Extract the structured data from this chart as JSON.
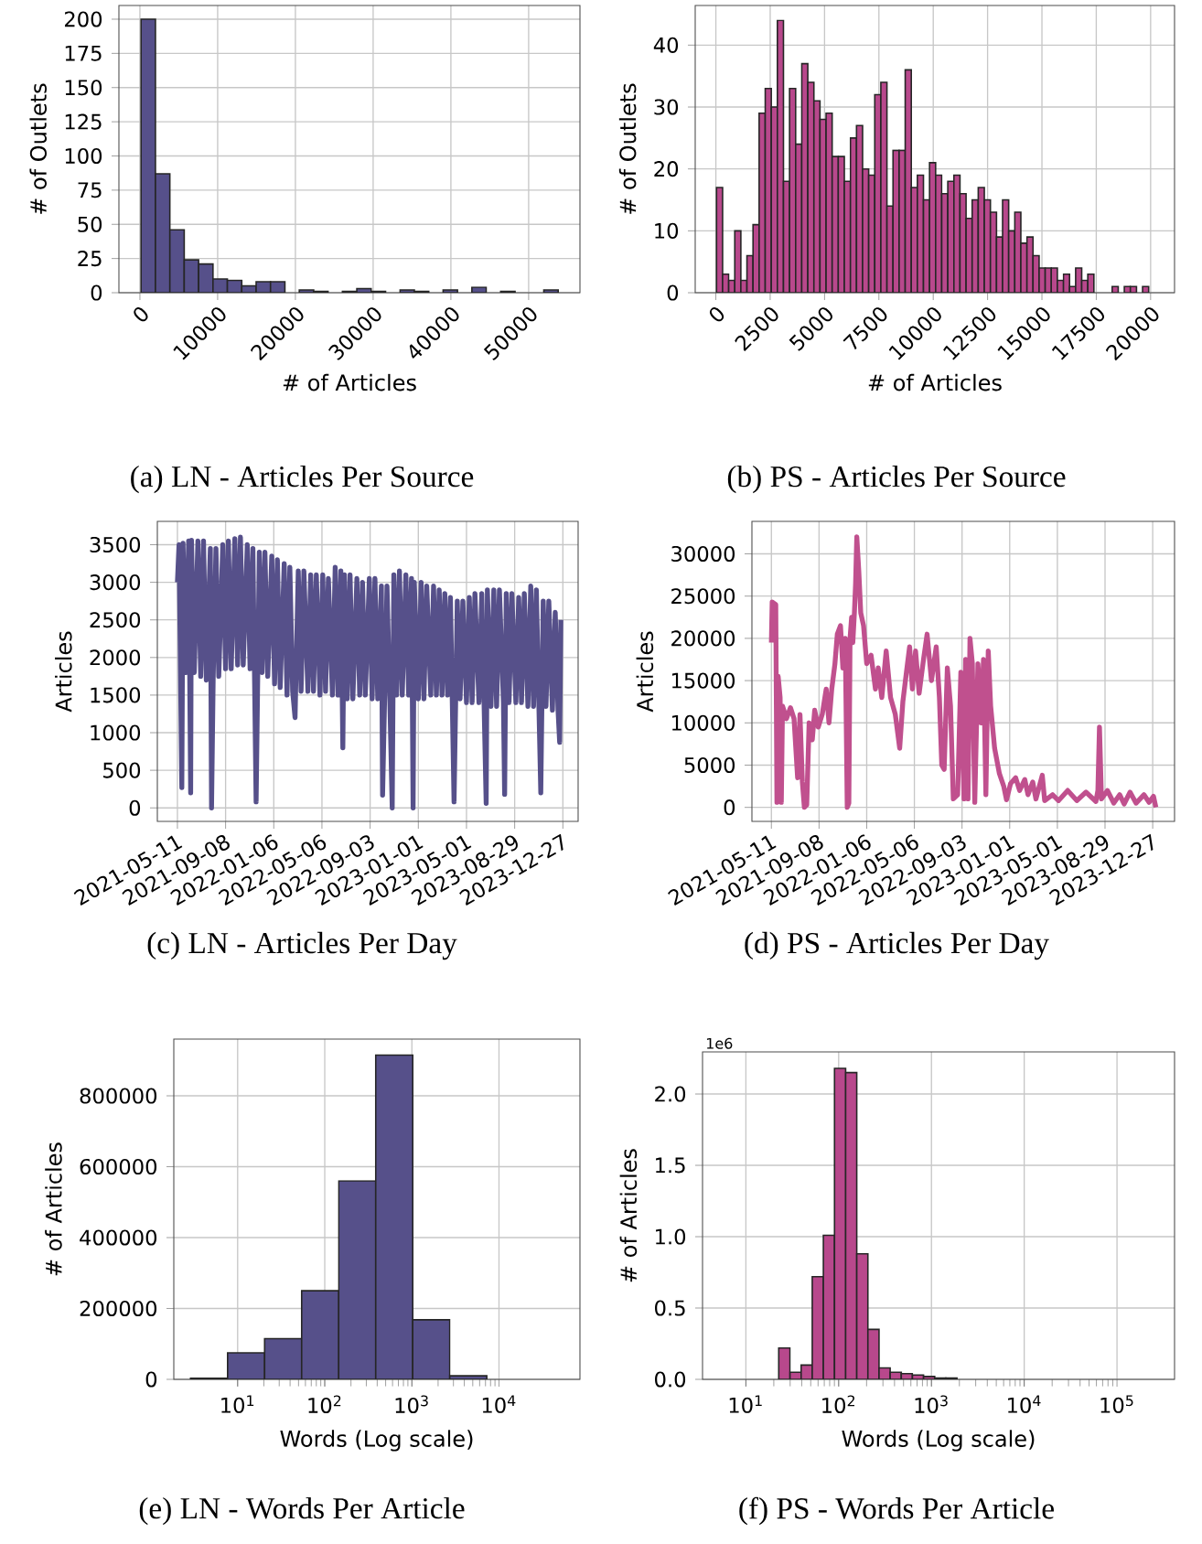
{
  "chart_data": [
    {
      "type": "histogram",
      "title": "(a) LN - Articles Per Source",
      "xlabel": "# of Articles",
      "ylabel": "# of Outlets",
      "color": "#56508a",
      "grid": true,
      "bins": [
        150,
        2000,
        3850,
        5700,
        7550,
        9400,
        11250,
        13100,
        14950,
        16800,
        18650,
        20500,
        22350,
        24200,
        26050,
        27900,
        29750,
        31600,
        33450,
        35300,
        37150,
        39000,
        40850,
        42700,
        44550,
        46400,
        48250,
        50100,
        51950,
        53800
      ],
      "values": [
        200,
        87,
        46,
        24,
        21,
        10,
        9,
        5,
        8,
        8,
        0,
        2,
        1,
        0,
        1,
        3,
        1,
        0,
        2,
        1,
        0,
        2,
        0,
        4,
        0,
        1,
        0,
        0,
        2
      ],
      "xlim": [
        -2700,
        56600
      ],
      "ylim": [
        0,
        210
      ],
      "xticks": [
        0,
        10000,
        20000,
        30000,
        40000,
        50000
      ],
      "yticks": [
        0,
        25,
        50,
        75,
        100,
        125,
        150,
        175,
        200
      ]
    },
    {
      "type": "histogram",
      "title": "(b) PS - Articles Per Source",
      "xlabel": "# of Articles",
      "ylabel": "# of Outlets",
      "color": "#b8488c",
      "grid": true,
      "bins": [
        30,
        310,
        590,
        870,
        1150,
        1430,
        1710,
        1990,
        2270,
        2550,
        2830,
        3110,
        3390,
        3670,
        3950,
        4230,
        4510,
        4790,
        5070,
        5350,
        5630,
        5910,
        6190,
        6470,
        6750,
        7030,
        7310,
        7590,
        7870,
        8150,
        8430,
        8710,
        8990,
        9270,
        9550,
        9830,
        10110,
        10390,
        10670,
        10950,
        11230,
        11510,
        11790,
        12070,
        12350,
        12630,
        12910,
        13190,
        13470,
        13750,
        14030,
        14310,
        14590,
        14870,
        15150,
        15430,
        15710,
        15990,
        16270,
        16550,
        16830,
        17110,
        17390,
        17670,
        17950,
        18230,
        18510,
        18790,
        19070,
        19350,
        19630,
        19910
      ],
      "values": [
        17,
        3,
        2,
        10,
        2,
        6,
        11,
        29,
        33,
        30,
        44,
        18,
        33,
        24,
        37,
        34,
        31,
        28,
        29,
        22,
        22,
        18,
        25,
        27,
        20,
        19,
        32,
        34,
        14,
        23,
        23,
        36,
        17,
        19,
        15,
        21,
        19,
        16,
        18,
        19,
        16,
        12,
        15,
        17,
        15,
        13,
        9,
        15,
        10,
        13,
        8,
        9,
        6,
        4,
        4,
        4,
        2,
        3,
        1,
        4,
        2,
        3,
        0,
        0,
        0,
        1,
        0,
        1,
        1,
        0,
        1
      ],
      "xlim": [
        -950,
        21100
      ],
      "ylim": [
        0,
        46.4
      ],
      "xticks": [
        0,
        2500,
        5000,
        7500,
        10000,
        12500,
        15000,
        17500,
        20000
      ],
      "yticks": [
        0,
        10,
        20,
        30,
        40
      ]
    },
    {
      "type": "line",
      "title": "(c) LN - Articles Per Day",
      "ylabel": "Articles",
      "color": "#56508a",
      "grid": true,
      "x": [
        "2021-05-11",
        "2021-05-15",
        "2021-05-22",
        "2021-05-25",
        "2021-06-01",
        "2021-06-08",
        "2021-06-13",
        "2021-06-15",
        "2021-06-22",
        "2021-07-01",
        "2021-07-08",
        "2021-07-15",
        "2021-07-22",
        "2021-08-01",
        "2021-08-04",
        "2021-08-08",
        "2021-08-15",
        "2021-08-22",
        "2021-09-01",
        "2021-09-08",
        "2021-09-15",
        "2021-09-22",
        "2021-10-01",
        "2021-10-08",
        "2021-10-15",
        "2021-10-22",
        "2021-11-01",
        "2021-11-08",
        "2021-11-15",
        "2021-11-23",
        "2021-12-01",
        "2021-12-08",
        "2021-12-15",
        "2021-12-22",
        "2022-01-01",
        "2022-01-08",
        "2022-01-15",
        "2022-01-22",
        "2022-02-01",
        "2022-02-08",
        "2022-02-15",
        "2022-02-22",
        "2022-02-28",
        "2022-03-08",
        "2022-03-15",
        "2022-03-22",
        "2022-04-01",
        "2022-04-08",
        "2022-04-15",
        "2022-04-22",
        "2022-05-01",
        "2022-05-08",
        "2022-05-15",
        "2022-05-22",
        "2022-06-01",
        "2022-06-08",
        "2022-06-15",
        "2022-06-22",
        "2022-06-27",
        "2022-07-01",
        "2022-07-08",
        "2022-07-15",
        "2022-07-22",
        "2022-08-01",
        "2022-08-08",
        "2022-08-15",
        "2022-08-22",
        "2022-09-01",
        "2022-09-08",
        "2022-09-15",
        "2022-09-22",
        "2022-10-01",
        "2022-10-04",
        "2022-10-15",
        "2022-10-22",
        "2022-10-28",
        "2022-11-01",
        "2022-11-08",
        "2022-11-15",
        "2022-11-22",
        "2022-12-01",
        "2022-12-08",
        "2022-12-15",
        "2022-12-19",
        "2022-12-22",
        "2023-01-01",
        "2023-01-08",
        "2023-01-15",
        "2023-01-22",
        "2023-02-01",
        "2023-02-08",
        "2023-02-15",
        "2023-02-22",
        "2023-03-01",
        "2023-03-08",
        "2023-03-15",
        "2023-03-22",
        "2023-03-31",
        "2023-04-08",
        "2023-04-15",
        "2023-04-22",
        "2023-05-01",
        "2023-05-08",
        "2023-05-15",
        "2023-05-22",
        "2023-06-01",
        "2023-06-08",
        "2023-06-19",
        "2023-06-22",
        "2023-07-01",
        "2023-07-08",
        "2023-07-15",
        "2023-07-22",
        "2023-08-01",
        "2023-08-04",
        "2023-08-08",
        "2023-08-15",
        "2023-08-22",
        "2023-09-01",
        "2023-09-08",
        "2023-09-15",
        "2023-09-22",
        "2023-10-01",
        "2023-10-08",
        "2023-10-15",
        "2023-10-22",
        "2023-11-02",
        "2023-11-08",
        "2023-11-15",
        "2023-11-22",
        "2023-12-01",
        "2023-12-08",
        "2023-12-15",
        "2023-12-19",
        "2023-12-22"
      ],
      "values": [
        3000,
        3500,
        270,
        3520,
        1800,
        3550,
        200,
        3560,
        1800,
        3550,
        1750,
        3550,
        1700,
        3450,
        0,
        1700,
        3450,
        1750,
        3500,
        1850,
        3550,
        1850,
        3580,
        1900,
        3600,
        1900,
        3500,
        1850,
        3450,
        80,
        3400,
        1800,
        3400,
        1750,
        3350,
        1650,
        3300,
        1600,
        3250,
        1500,
        3200,
        1550,
        1200,
        3150,
        1550,
        3150,
        1550,
        3100,
        1550,
        3100,
        1500,
        3100,
        1550,
        3050,
        1500,
        3200,
        1500,
        3150,
        800,
        3100,
        1450,
        3100,
        1450,
        3050,
        1500,
        3000,
        1500,
        3050,
        1450,
        3050,
        1450,
        2950,
        170,
        2950,
        1450,
        0,
        3100,
        1500,
        3150,
        1500,
        3100,
        1500,
        3050,
        0,
        3000,
        1450,
        3000,
        1450,
        2950,
        1500,
        2950,
        1500,
        2900,
        1500,
        2850,
        1500,
        2800,
        80,
        2750,
        1450,
        2750,
        1400,
        2800,
        1400,
        2850,
        1400,
        2850,
        60,
        2900,
        1350,
        2900,
        1350,
        2900,
        1400,
        180,
        2850,
        1400,
        2850,
        1400,
        2800,
        1400,
        2850,
        1350,
        2950,
        1350,
        2900,
        200,
        2750,
        1350,
        2750,
        1300,
        2600,
        1300,
        870,
        2500
      ],
      "xlim": [
        "2021-03-22",
        "2024-02-03"
      ],
      "ylim": [
        -180,
        3810
      ],
      "xticks": [
        "2021-05-11",
        "2021-09-08",
        "2022-01-06",
        "2022-05-06",
        "2022-09-03",
        "2023-01-01",
        "2023-05-01",
        "2023-08-29",
        "2023-12-27"
      ],
      "yticks": [
        0,
        500,
        1000,
        1500,
        2000,
        2500,
        3000,
        3500
      ]
    },
    {
      "type": "line",
      "title": "(d) PS - Articles Per Day",
      "ylabel": "Articles",
      "color": "#c0508e",
      "grid": true,
      "x": [
        "2021-05-11",
        "2021-05-13",
        "2021-05-22",
        "2021-05-25",
        "2021-05-28",
        "2021-06-02",
        "2021-06-05",
        "2021-06-08",
        "2021-06-18",
        "2021-06-28",
        "2021-07-07",
        "2021-07-16",
        "2021-07-22",
        "2021-07-28",
        "2021-08-02",
        "2021-08-08",
        "2021-08-14",
        "2021-08-22",
        "2021-08-28",
        "2021-09-06",
        "2021-09-16",
        "2021-09-26",
        "2021-10-03",
        "2021-10-10",
        "2021-10-18",
        "2021-10-24",
        "2021-11-01",
        "2021-11-07",
        "2021-11-13",
        "2021-11-18",
        "2021-11-22",
        "2021-11-25",
        "2021-11-29",
        "2021-12-02",
        "2021-12-06",
        "2021-12-09",
        "2021-12-12",
        "2021-12-17",
        "2021-12-22",
        "2021-12-29",
        "2022-01-06",
        "2022-01-17",
        "2022-01-28",
        "2022-02-04",
        "2022-02-13",
        "2022-02-24",
        "2022-03-07",
        "2022-03-19",
        "2022-03-30",
        "2022-04-07",
        "2022-04-16",
        "2022-04-24",
        "2022-05-01",
        "2022-05-09",
        "2022-05-18",
        "2022-05-29",
        "2022-06-07",
        "2022-06-18",
        "2022-06-30",
        "2022-07-08",
        "2022-07-14",
        "2022-07-20",
        "2022-07-28",
        "2022-08-05",
        "2022-08-12",
        "2022-08-23",
        "2022-08-31",
        "2022-09-08",
        "2022-09-12",
        "2022-09-18",
        "2022-09-23",
        "2022-09-29",
        "2022-10-05",
        "2022-10-13",
        "2022-10-21",
        "2022-10-27",
        "2022-11-02",
        "2022-11-08",
        "2022-11-14",
        "2022-11-24",
        "2022-12-06",
        "2022-12-17",
        "2022-12-24",
        "2023-01-03",
        "2023-01-16",
        "2023-01-26",
        "2023-02-08",
        "2023-02-16",
        "2023-02-28",
        "2023-03-08",
        "2023-03-24",
        "2023-03-30",
        "2023-04-19",
        "2023-05-04",
        "2023-05-27",
        "2023-06-19",
        "2023-07-12",
        "2023-08-06",
        "2023-08-11",
        "2023-08-15",
        "2023-08-20",
        "2023-09-04",
        "2023-09-20",
        "2023-10-05",
        "2023-10-16",
        "2023-10-31",
        "2023-11-15",
        "2023-12-05",
        "2023-12-18",
        "2023-12-29",
        "2024-01-04"
      ],
      "values": [
        19500,
        24300,
        24000,
        600,
        15500,
        13000,
        600,
        12000,
        10500,
        11800,
        10500,
        3500,
        11000,
        3000,
        0,
        300,
        10000,
        8000,
        11500,
        9500,
        11000,
        14000,
        10000,
        14000,
        17000,
        20500,
        21500,
        16500,
        20000,
        0,
        500,
        20000,
        22500,
        19500,
        23000,
        26500,
        32000,
        28000,
        23000,
        21500,
        17000,
        18000,
        14000,
        16500,
        13000,
        18500,
        13000,
        11000,
        7000,
        12500,
        16000,
        19000,
        14000,
        18500,
        13500,
        17500,
        20500,
        15000,
        19000,
        13000,
        5000,
        4500,
        16500,
        12000,
        1000,
        1500,
        16000,
        1000,
        17500,
        1000,
        20000,
        17000,
        600,
        17000,
        10000,
        17500,
        1500,
        18500,
        12000,
        7000,
        4000,
        2500,
        900,
        2800,
        3500,
        2000,
        3300,
        1500,
        3000,
        1000,
        3800,
        800,
        1500,
        800,
        2000,
        800,
        1800,
        700,
        2000,
        9500,
        1000,
        2000,
        500,
        1500,
        400,
        1800,
        500,
        1500,
        600,
        1300,
        0
      ],
      "xlim": [
        "2021-03-23",
        "2024-02-20"
      ],
      "ylim": [
        -1660,
        33840
      ],
      "xticks": [
        "2021-05-11",
        "2021-09-08",
        "2022-01-06",
        "2022-05-06",
        "2022-09-03",
        "2023-01-01",
        "2023-05-01",
        "2023-08-29",
        "2023-12-27"
      ],
      "yticks": [
        0,
        5000,
        10000,
        15000,
        20000,
        25000,
        30000
      ]
    },
    {
      "type": "histogram",
      "title": "(e) LN - Words Per Article",
      "xlabel": "Words (Log scale)",
      "ylabel": "# of Articles",
      "color": "#56508a",
      "grid": true,
      "log": "x",
      "bins": [
        2.88,
        7.67,
        20.4,
        54.3,
        144.5,
        384.6,
        1023,
        2723,
        7244,
        19280,
        51290
      ],
      "values": [
        3000,
        75000,
        115000,
        250000,
        560000,
        915000,
        168000,
        10000,
        0,
        0
      ],
      "xlim": [
        1.85,
        85000
      ],
      "ylim": [
        0,
        960000
      ],
      "xticks": [
        {
          "value": 10,
          "label": "10$^{1}$"
        },
        {
          "value": 100,
          "label": "10$^{2}$"
        },
        {
          "value": 1000,
          "label": "10$^{3}$"
        },
        {
          "value": 10000,
          "label": "10$^{4}$"
        }
      ],
      "yticks": [
        0,
        200000,
        400000,
        600000,
        800000
      ]
    },
    {
      "type": "histogram",
      "title": "(f) PS - Words Per Article",
      "xlabel": "Words (Log scale)",
      "ylabel": "# of Articles",
      "color": "#b8488c",
      "grid": true,
      "log": "x",
      "annotations": [
        "1e6"
      ],
      "bins": [
        22.6,
        29.9,
        39.4,
        51.9,
        68.4,
        90.2,
        118.9,
        156.7,
        206.5,
        272.3,
        358.9,
        473.2,
        623.7,
        822.2,
        1084,
        1429,
        1884
      ],
      "values": [
        0.22,
        0.05,
        0.1,
        0.72,
        1.01,
        2.18,
        2.15,
        0.88,
        0.35,
        0.08,
        0.05,
        0.04,
        0.03,
        0.02,
        0.01,
        0.01
      ],
      "xlim": [
        3.41,
        417000
      ],
      "ylim": [
        0,
        2.295
      ],
      "xticks": [
        {
          "value": 10,
          "label": "10$^{1}$"
        },
        {
          "value": 100,
          "label": "10$^{2}$"
        },
        {
          "value": 1000,
          "label": "10$^{3}$"
        },
        {
          "value": 10000,
          "label": "10$^{4}$"
        },
        {
          "value": 100000,
          "label": "10$^{5}$"
        }
      ],
      "yticks": [
        {
          "value": 0,
          "label": "0.0"
        },
        0.5,
        {
          "value": 1,
          "label": "1.0"
        },
        1.5,
        {
          "value": 2,
          "label": "2.0"
        }
      ]
    }
  ]
}
